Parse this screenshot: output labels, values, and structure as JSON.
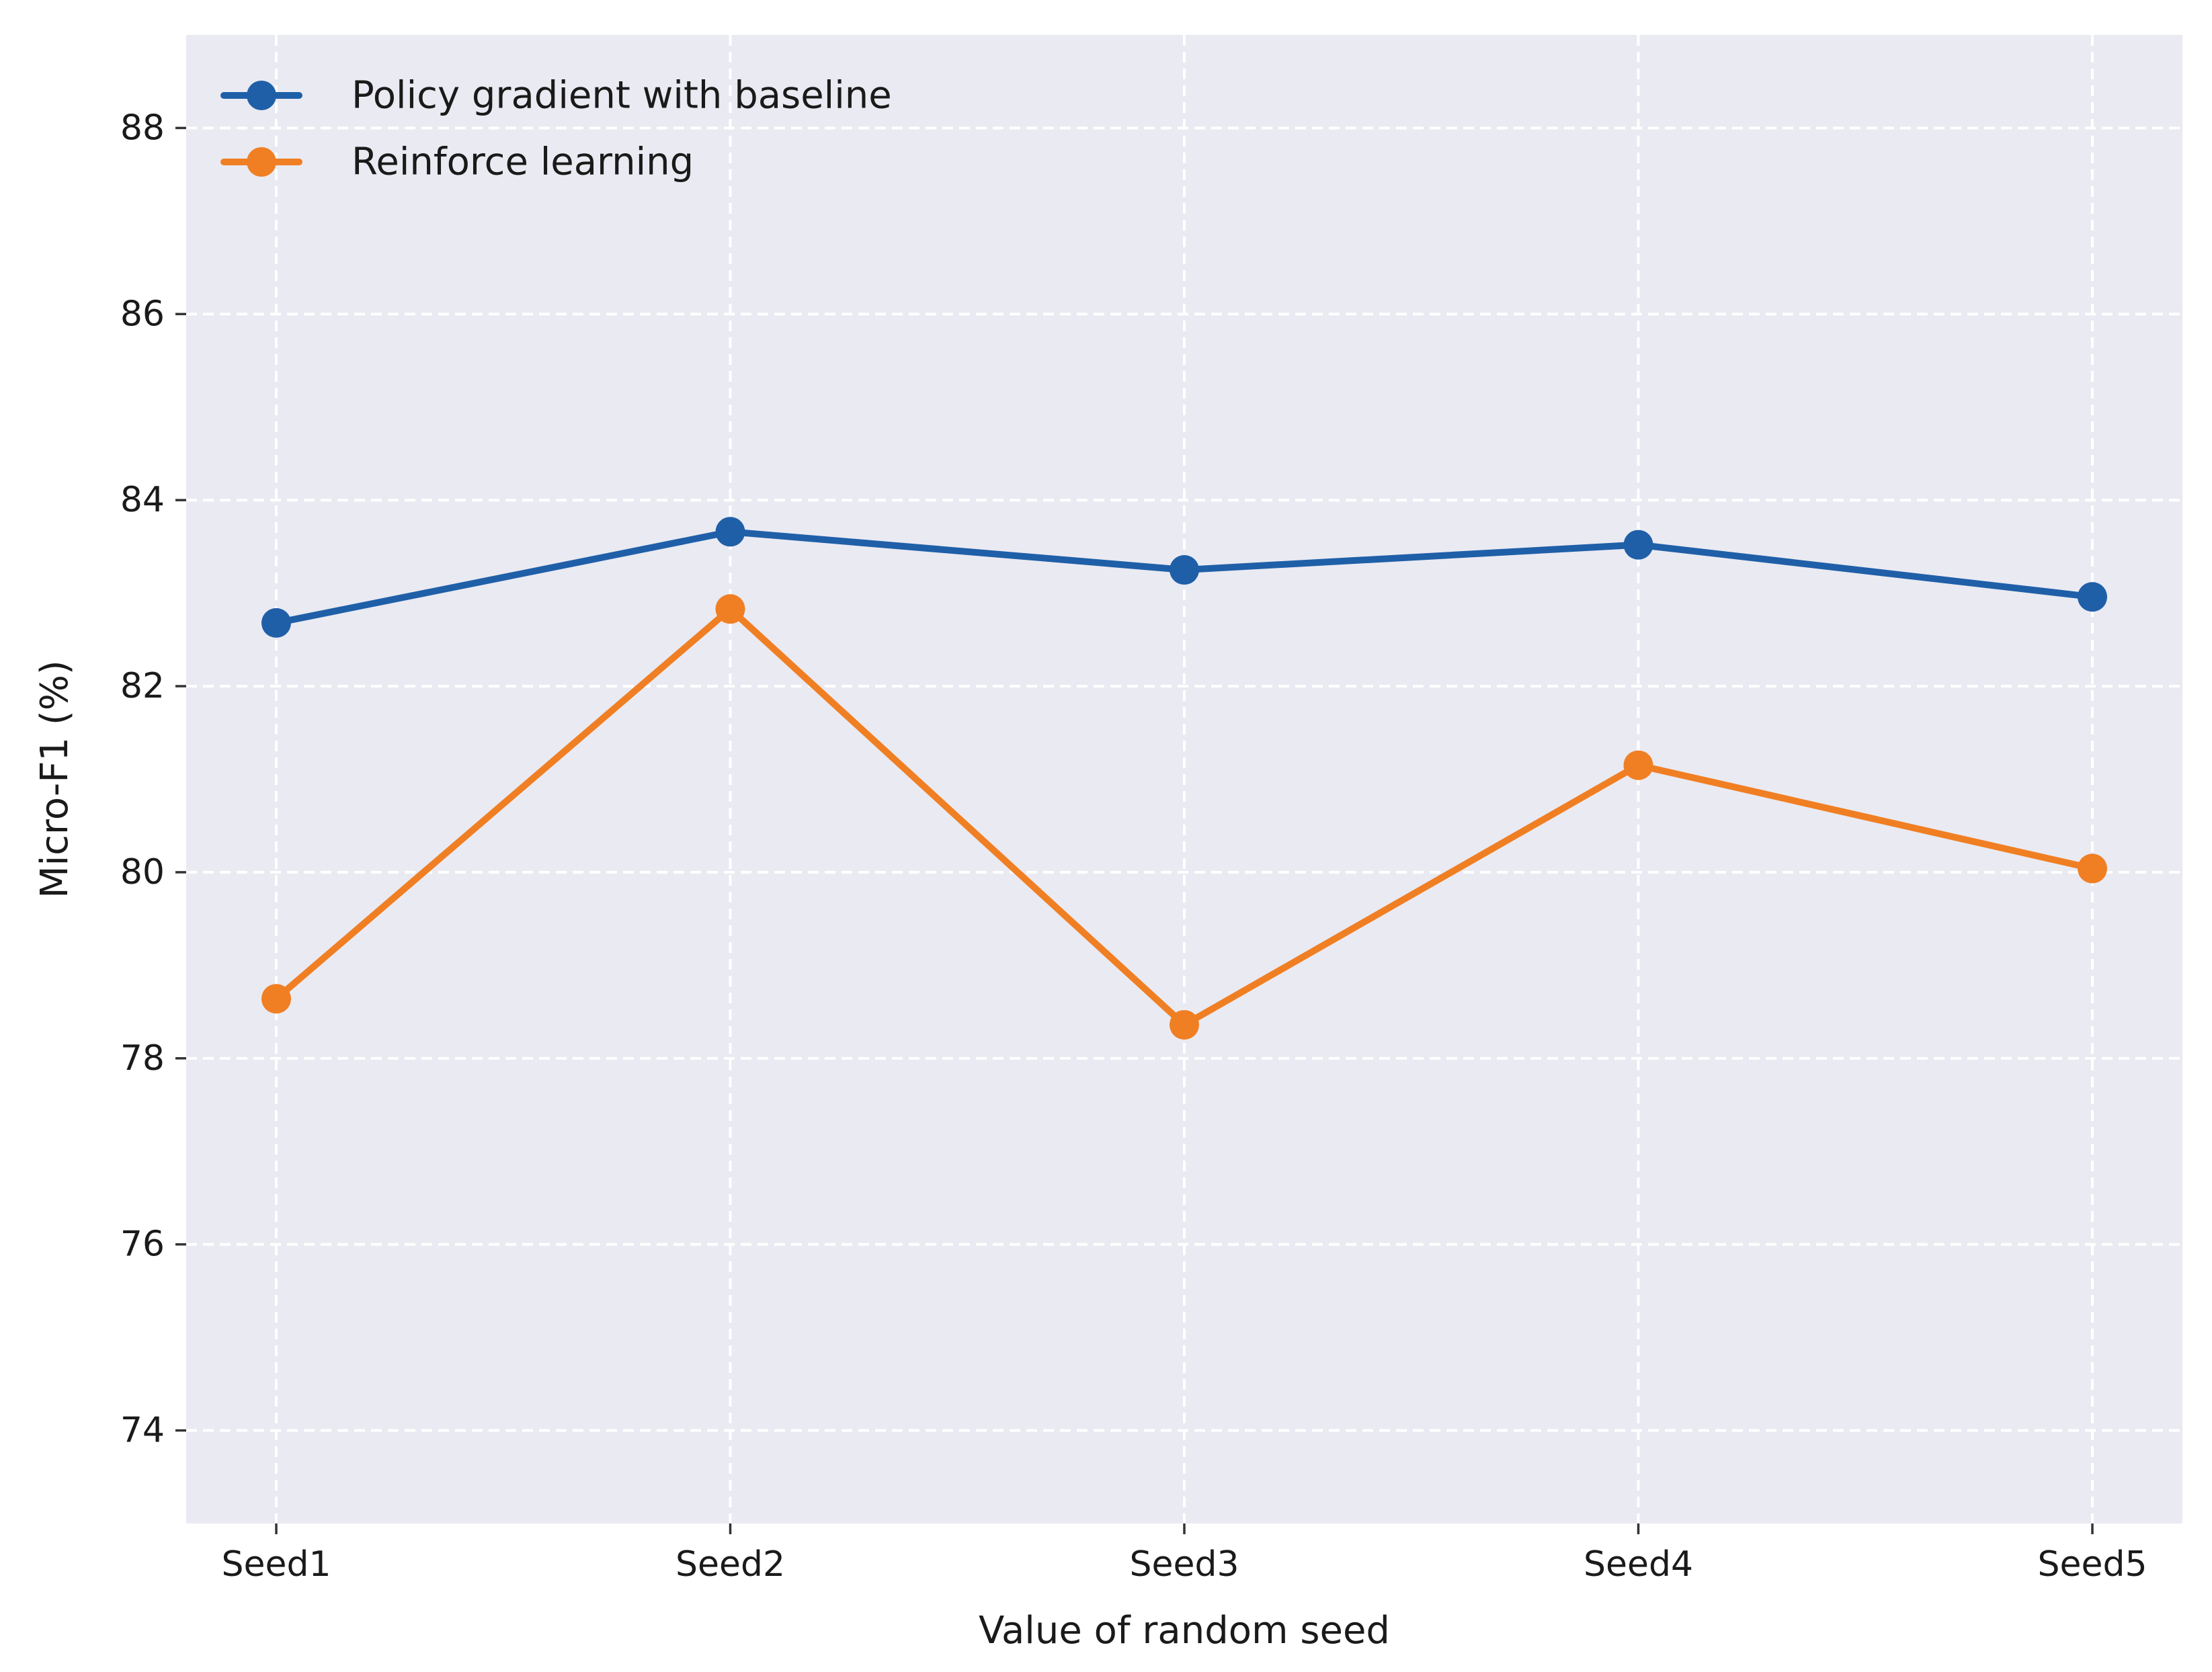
{
  "chart_data": {
    "type": "line",
    "title": "",
    "xlabel": "Value of random seed",
    "ylabel": "Micro-F1 (%)",
    "categories": [
      "Seed1",
      "Seed2",
      "Seed3",
      "Seed4",
      "Seed5"
    ],
    "ylim": [
      73,
      89
    ],
    "yticks": [
      74,
      76,
      78,
      80,
      82,
      84,
      86,
      88
    ],
    "grid": true,
    "legend_position": "top-left",
    "series": [
      {
        "name": "Policy gradient with baseline",
        "color": "#1f5fa8",
        "values": [
          82.68,
          83.66,
          83.25,
          83.52,
          82.96
        ]
      },
      {
        "name": "Reinforce learning",
        "color": "#f07f23",
        "values": [
          78.64,
          82.83,
          78.36,
          81.15,
          80.04
        ]
      }
    ]
  },
  "style": {
    "plot_background": "#eaeaf2",
    "grid_color": "#ffffff"
  }
}
